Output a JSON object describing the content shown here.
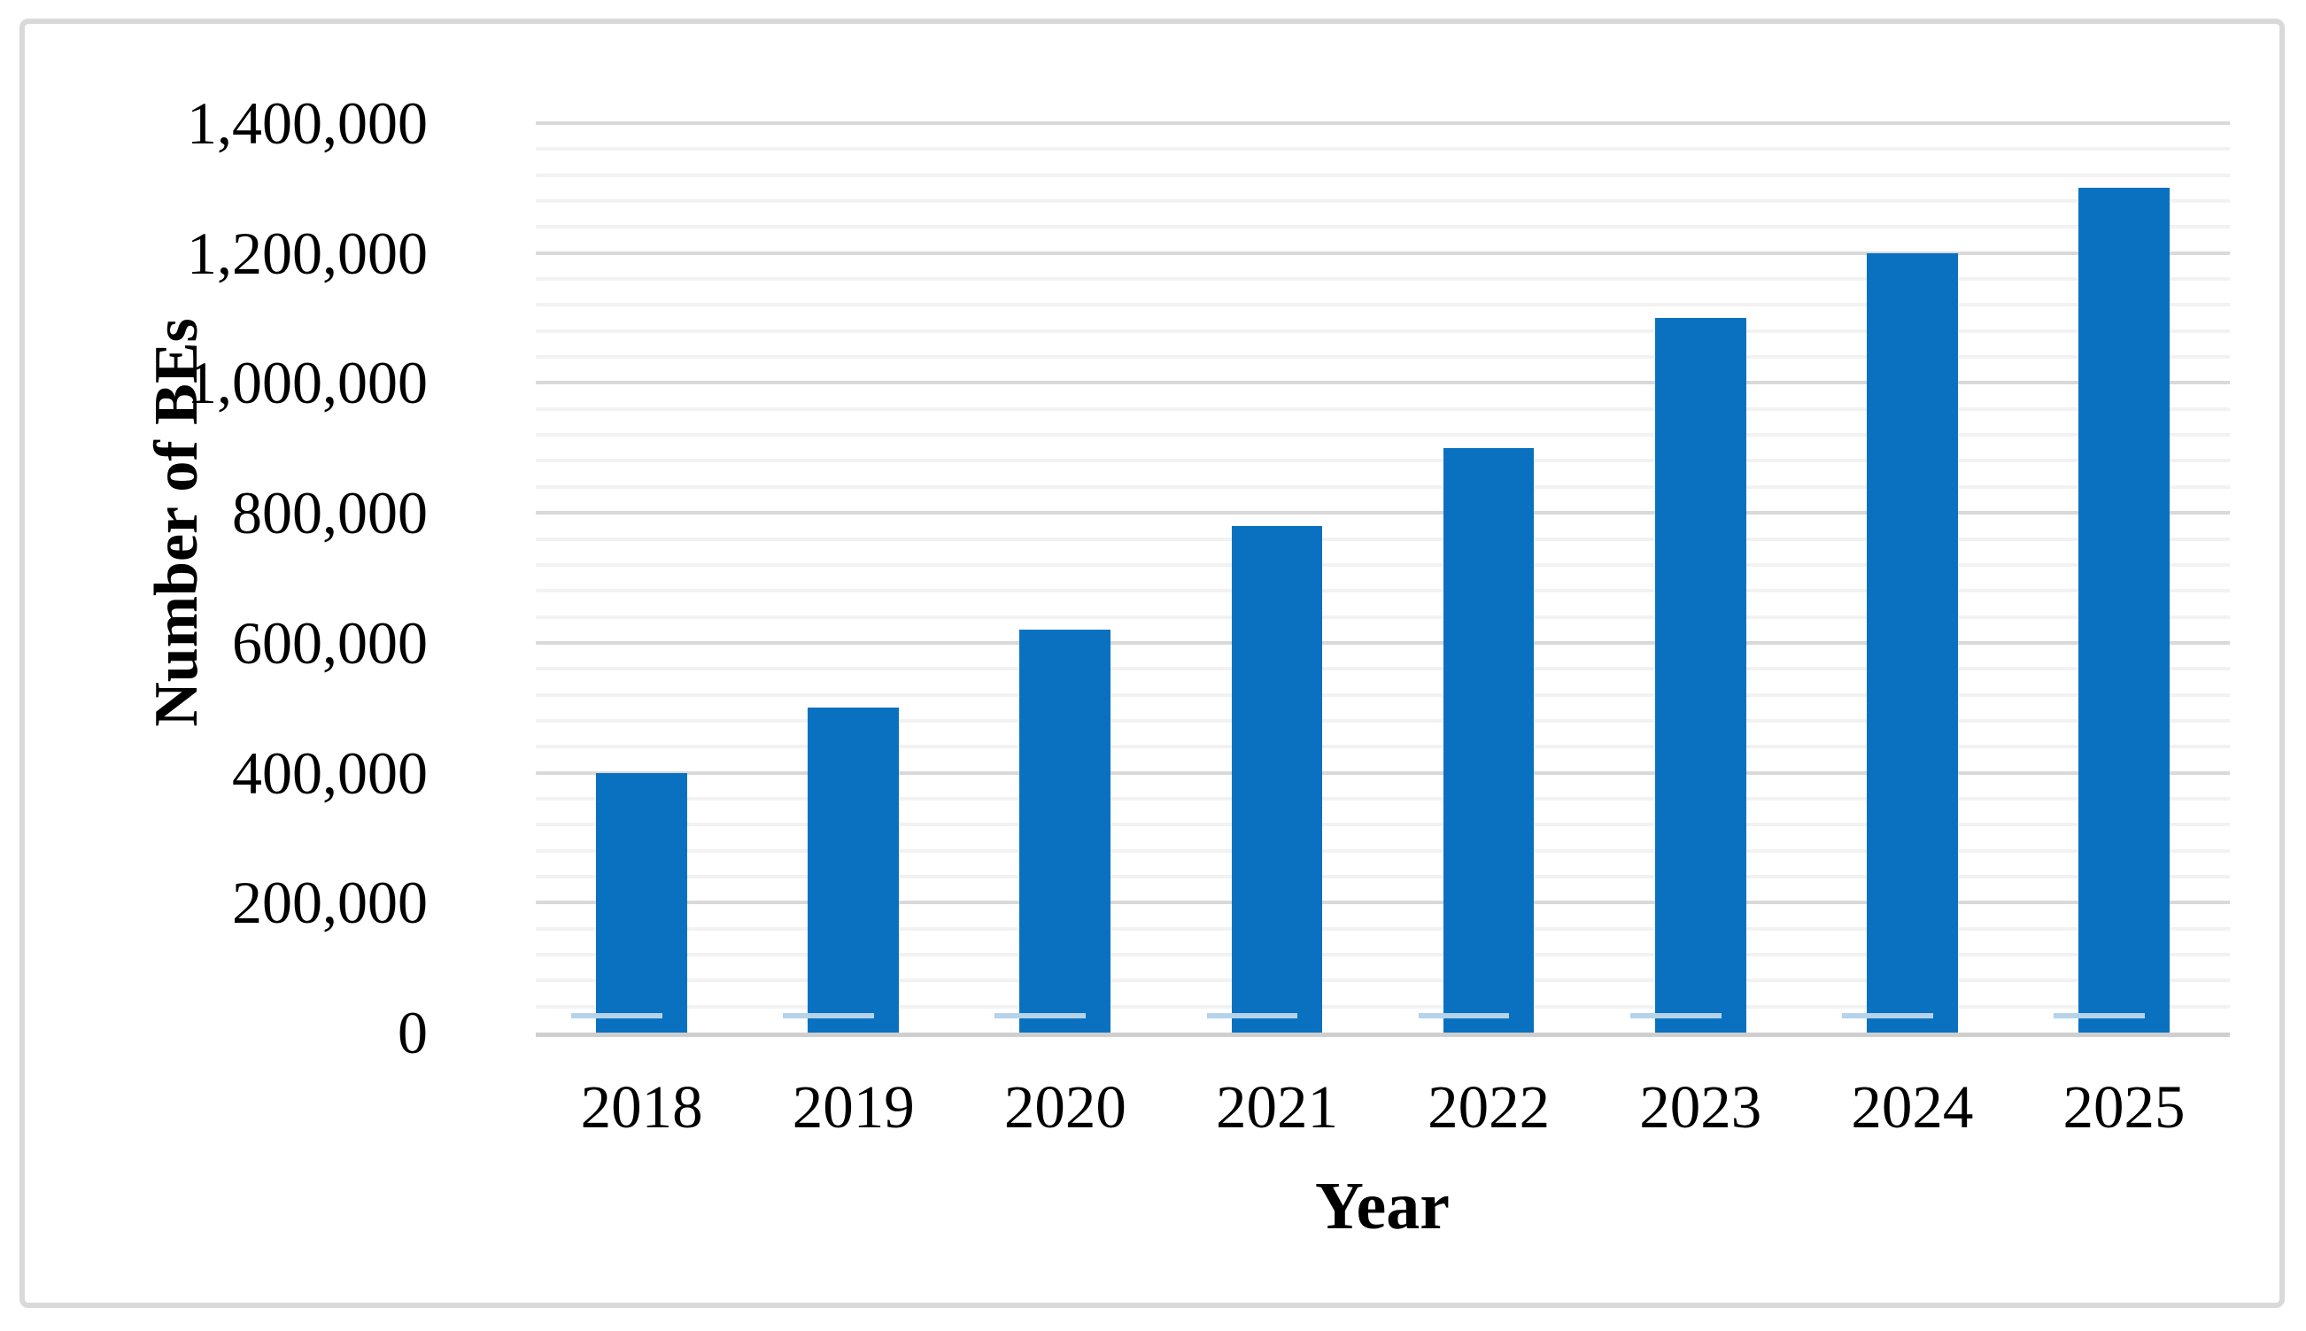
{
  "chart_data": {
    "type": "bar",
    "title": "",
    "categories": [
      "2018",
      "2019",
      "2020",
      "2021",
      "2022",
      "2023",
      "2024",
      "2025"
    ],
    "values": [
      400000,
      500000,
      620000,
      780000,
      900000,
      1100000,
      1200000,
      1300000
    ],
    "xlabel": "Year",
    "ylabel": "Number of BEs",
    "ylim": [
      0,
      1400000
    ],
    "ytick_interval": 200000,
    "minor_gridline_interval": 40000,
    "ytick_labels": [
      "0",
      "200,000",
      "400,000",
      "600,000",
      "800,000",
      "1,000,000",
      "1,200,000",
      "1,400,000"
    ],
    "legend": "none",
    "grid": "major-and-minor-horizontal",
    "colors": {
      "bar_fill": "#0A71C1",
      "bar_shadow": "#B5D3EA",
      "major_gridline": "#D9D9D9",
      "minor_gridline": "#F2F2F2",
      "axis_line": "#CFCFCF",
      "frame_border": "#D9D9D9",
      "text": "#000000",
      "background": "#FFFFFF"
    }
  }
}
